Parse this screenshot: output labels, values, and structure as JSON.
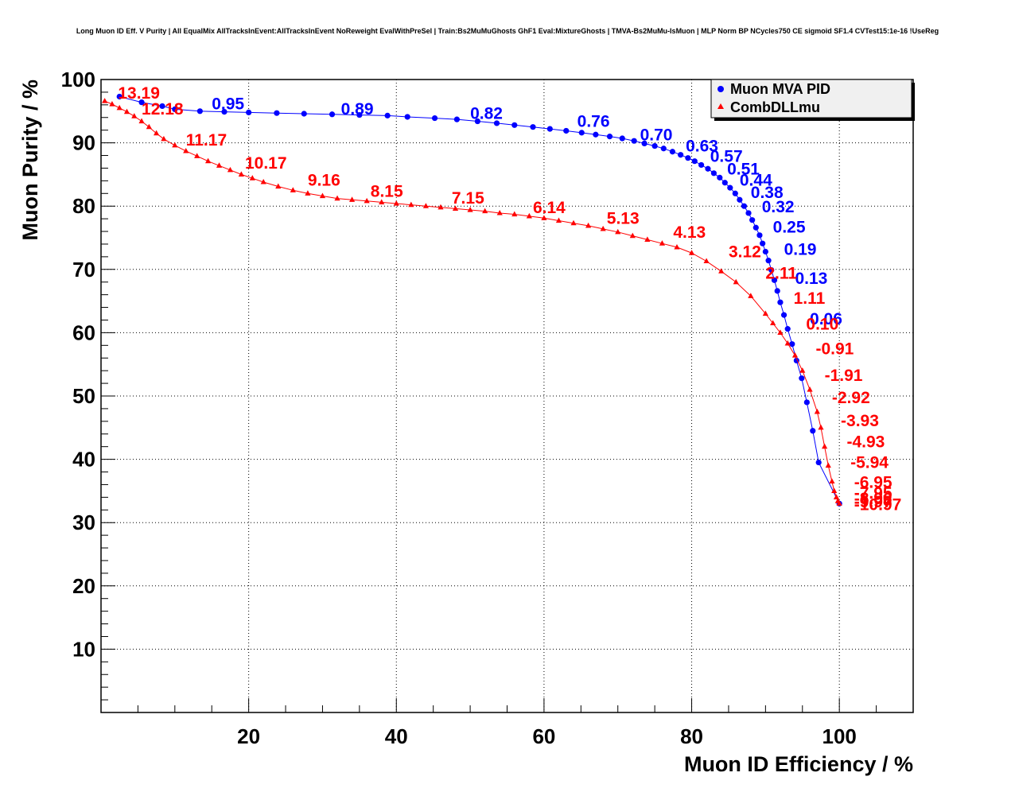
{
  "chart_data": {
    "type": "scatter",
    "title": "Long Muon ID Eff. V Purity | All EqualMix AllTracksInEvent:AllTracksInEvent NoReweight EvalWithPreSel | Train:Bs2MuMuGhosts GhF1 Eval:MixtureGhosts | TMVA-Bs2MuMu-IsMuon | MLP Norm BP NCycles750 CE sigmoid SF1.4 CVTest15:1e-16 !UseReg",
    "xlabel": "Muon ID Efficiency / %",
    "ylabel": "Muon Purity / %",
    "xlim": [
      0,
      110
    ],
    "ylim": [
      0,
      100
    ],
    "x_ticks": [
      20,
      40,
      60,
      80,
      100
    ],
    "y_ticks": [
      10,
      20,
      30,
      40,
      50,
      60,
      70,
      80,
      90,
      100
    ],
    "grid": true,
    "legend_position": "top-right",
    "series": [
      {
        "name": "Muon MVA PID",
        "color": "#0000ff",
        "marker": "circle",
        "x": [
          2.5,
          5.5,
          8.3,
          10.0,
          13.4,
          16.7,
          20.0,
          23.8,
          27.5,
          31.3,
          35.0,
          38.8,
          41.5,
          45.2,
          48.2,
          51.0,
          53.6,
          56.0,
          58.5,
          60.8,
          63.0,
          65.1,
          67.0,
          68.9,
          70.6,
          72.2,
          73.6,
          75.0,
          76.2,
          77.4,
          78.5,
          79.5,
          80.4,
          81.3,
          82.2,
          83.0,
          83.8,
          84.5,
          85.2,
          85.9,
          86.5,
          87.1,
          87.7,
          88.2,
          88.7,
          89.2,
          89.6,
          90.0,
          90.4,
          90.8,
          91.2,
          91.6,
          92.0,
          92.5,
          93.0,
          93.6,
          94.2,
          94.9,
          95.6,
          96.4,
          97.2,
          100.0
        ],
        "y": [
          97.3,
          96.4,
          95.8,
          95.3,
          95.0,
          94.9,
          94.8,
          94.7,
          94.6,
          94.5,
          94.4,
          94.3,
          94.1,
          93.9,
          93.7,
          93.4,
          93.1,
          92.8,
          92.5,
          92.2,
          91.9,
          91.6,
          91.3,
          91.0,
          90.7,
          90.3,
          89.9,
          89.5,
          89.1,
          88.6,
          88.1,
          87.6,
          87.1,
          86.5,
          85.9,
          85.2,
          84.5,
          83.7,
          82.9,
          82.0,
          81.0,
          80.0,
          78.9,
          77.8,
          76.6,
          75.4,
          74.1,
          72.8,
          71.4,
          69.9,
          68.3,
          66.6,
          64.8,
          62.8,
          60.6,
          58.2,
          55.6,
          52.8,
          49.0,
          44.5,
          39.5,
          33.0
        ],
        "labels": [
          {
            "text": "0.95",
            "x": 15.0,
            "y": 95.3
          },
          {
            "text": "0.89",
            "x": 32.5,
            "y": 94.5
          },
          {
            "text": "0.82",
            "x": 50.0,
            "y": 93.8
          },
          {
            "text": "0.76",
            "x": 64.5,
            "y": 92.5
          },
          {
            "text": "0.70",
            "x": 73.0,
            "y": 90.4
          },
          {
            "text": "0.63",
            "x": 79.2,
            "y": 88.6
          },
          {
            "text": "0.57",
            "x": 82.5,
            "y": 87.0
          },
          {
            "text": "0.51",
            "x": 84.8,
            "y": 85.0
          },
          {
            "text": "0.44",
            "x": 86.5,
            "y": 83.2
          },
          {
            "text": "0.38",
            "x": 88.0,
            "y": 81.3
          },
          {
            "text": "0.32",
            "x": 89.5,
            "y": 79.0
          },
          {
            "text": "0.25",
            "x": 91.0,
            "y": 75.8
          },
          {
            "text": "0.19",
            "x": 92.5,
            "y": 72.3
          },
          {
            "text": "0.13",
            "x": 94.0,
            "y": 67.7
          },
          {
            "text": "0.06",
            "x": 96.0,
            "y": 61.3
          }
        ]
      },
      {
        "name": "CombDLLmu",
        "color": "#ff0000",
        "marker": "triangle",
        "x": [
          0.5,
          1.5,
          2.5,
          3.5,
          4.5,
          5.5,
          6.5,
          7.5,
          8.5,
          10.0,
          11.5,
          13.0,
          14.5,
          16.0,
          17.5,
          19.0,
          20.5,
          22.0,
          24.0,
          26.0,
          28.0,
          30.0,
          32.0,
          34.0,
          36.0,
          38.0,
          40.0,
          42.0,
          44.0,
          46.0,
          48.0,
          50.0,
          52.0,
          54.0,
          56.0,
          58.0,
          60.0,
          62.0,
          64.0,
          66.0,
          68.0,
          70.0,
          72.0,
          74.0,
          76.0,
          78.0,
          80.0,
          82.0,
          84.0,
          86.0,
          88.0,
          90.0,
          91.0,
          92.0,
          93.0,
          94.0,
          95.0,
          96.0,
          97.0,
          97.5,
          98.0,
          98.5,
          99.0,
          99.3,
          99.6,
          99.8,
          100.0
        ],
        "y": [
          96.6,
          96.1,
          95.5,
          94.9,
          94.2,
          93.4,
          92.5,
          91.5,
          90.6,
          89.6,
          88.7,
          87.9,
          87.1,
          86.4,
          85.7,
          85.0,
          84.4,
          83.8,
          83.1,
          82.5,
          82.0,
          81.6,
          81.2,
          81.0,
          80.8,
          80.6,
          80.4,
          80.2,
          80.0,
          79.8,
          79.6,
          79.4,
          79.2,
          78.9,
          78.7,
          78.4,
          78.1,
          77.7,
          77.3,
          76.9,
          76.4,
          75.9,
          75.3,
          74.7,
          74.1,
          73.5,
          72.6,
          71.3,
          69.7,
          68.0,
          65.8,
          63.0,
          61.5,
          60.0,
          58.3,
          56.4,
          54.0,
          51.0,
          47.5,
          45.0,
          42.0,
          39.0,
          36.5,
          35.0,
          34.0,
          33.4,
          33.0
        ],
        "labels": [
          {
            "text": "13.19",
            "x": 2.3,
            "y": 97.0
          },
          {
            "text": "12.18",
            "x": 5.5,
            "y": 94.5
          },
          {
            "text": "11.17",
            "x": 11.5,
            "y": 89.6
          },
          {
            "text": "10.17",
            "x": 19.5,
            "y": 85.9
          },
          {
            "text": "9.16",
            "x": 28.0,
            "y": 83.2
          },
          {
            "text": "8.15",
            "x": 36.5,
            "y": 81.5
          },
          {
            "text": "7.15",
            "x": 47.5,
            "y": 80.4
          },
          {
            "text": "6.14",
            "x": 58.5,
            "y": 78.9
          },
          {
            "text": "5.13",
            "x": 68.5,
            "y": 77.2
          },
          {
            "text": "4.13",
            "x": 77.5,
            "y": 75.0
          },
          {
            "text": "3.12",
            "x": 85.0,
            "y": 71.9
          },
          {
            "text": "2.11",
            "x": 90.0,
            "y": 68.5
          },
          {
            "text": "1.11",
            "x": 93.8,
            "y": 64.6
          },
          {
            "text": "0.10",
            "x": 95.5,
            "y": 60.5
          },
          {
            "text": "-0.91",
            "x": 96.8,
            "y": 56.6
          },
          {
            "text": "-1.91",
            "x": 98.0,
            "y": 52.4
          },
          {
            "text": "-2.92",
            "x": 99.0,
            "y": 48.9
          },
          {
            "text": "-3.93",
            "x": 100.2,
            "y": 45.2
          },
          {
            "text": "-4.93",
            "x": 101.0,
            "y": 41.9
          },
          {
            "text": "-5.94",
            "x": 101.5,
            "y": 38.6
          },
          {
            "text": "-6.95",
            "x": 102.0,
            "y": 35.5
          },
          {
            "text": "-7.95",
            "x": 102.0,
            "y": 33.8
          },
          {
            "text": "-8.96",
            "x": 102.0,
            "y": 32.9
          },
          {
            "text": "-9.97",
            "x": 102.0,
            "y": 32.4
          },
          {
            "text": "-10.97",
            "x": 102.0,
            "y": 32.0
          }
        ]
      }
    ]
  }
}
